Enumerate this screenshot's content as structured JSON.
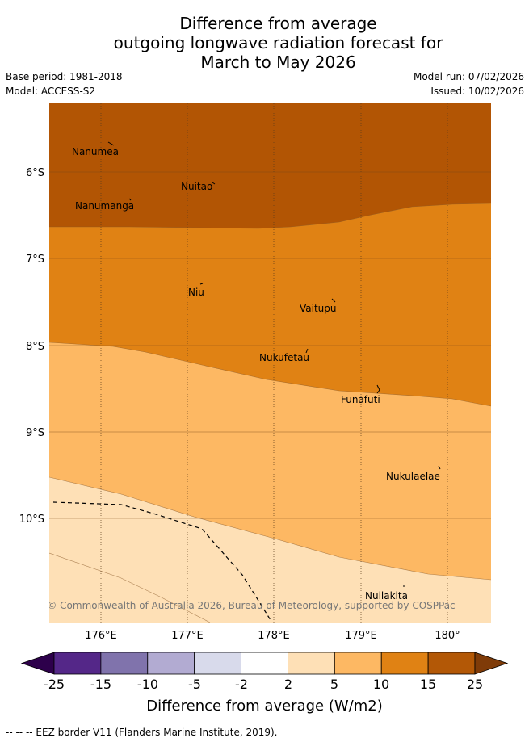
{
  "title": {
    "line1": "Difference from average",
    "line2": "outgoing longwave radiation forecast for",
    "line3": "March to May 2026"
  },
  "meta": {
    "base_period": "Base period: 1981-2018",
    "model": "Model: ACCESS-S2",
    "model_run": "Model run: 07/02/2026",
    "issued": "Issued: 10/02/2026"
  },
  "map": {
    "lat_ticks": [
      "6°S",
      "7°S",
      "8°S",
      "9°S",
      "10°S"
    ],
    "lon_ticks": [
      "176°E",
      "177°E",
      "178°E",
      "179°E",
      "180°"
    ],
    "places": [
      "Nanumea",
      "Nuitao",
      "Nanumanga",
      "Niu",
      "Vaitupu",
      "Nukufetau",
      "Funafuti",
      "Nukulaelae",
      "Nuilakita"
    ],
    "copyright": "© Commonwealth of Australia 2026, Bureau of Meteorology, supported by COSPPac",
    "colors": {
      "band_15_25": "#b25504",
      "band_10_15": "#e08214",
      "band_5_10": "#fdb863",
      "band_2_5": "#fee0b6",
      "grid": "#7a4a1a",
      "eez": "#000000"
    }
  },
  "colorbar": {
    "labels": [
      "-25",
      "-15",
      "-10",
      "-5",
      "-2",
      "2",
      "5",
      "10",
      "15",
      "25"
    ],
    "colors": [
      "#2d004b",
      "#542788",
      "#8073ac",
      "#b2abd2",
      "#d8daeb",
      "#ffffff",
      "#fee0b6",
      "#fdb863",
      "#e08214",
      "#b35806",
      "#7f3b08"
    ],
    "title": "Difference from average (W/m2)"
  },
  "footnote": "--  --  -- EEZ border V11 (Flanders Marine Institute, 2019)."
}
